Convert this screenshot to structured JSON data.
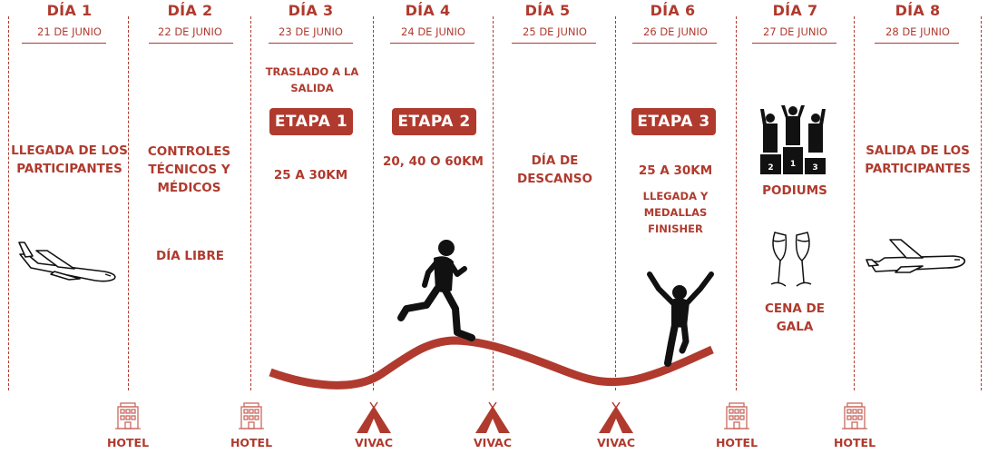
{
  "colors": {
    "accent": "#b03a2e",
    "figure": "#111111"
  },
  "days": [
    {
      "title": "DÍA 1",
      "date": "21 DE JUNIO"
    },
    {
      "title": "DÍA 2",
      "date": "22 DE JUNIO"
    },
    {
      "title": "DÍA 3",
      "date": "23 DE JUNIO"
    },
    {
      "title": "DÍA 4",
      "date": "24 DE JUNIO"
    },
    {
      "title": "DÍA 5",
      "date": "25 DE JUNIO"
    },
    {
      "title": "DÍA 6",
      "date": "26 DE JUNIO"
    },
    {
      "title": "DÍA 7",
      "date": "27 DE JUNIO"
    },
    {
      "title": "DÍA 8",
      "date": "28 DE JUNIO"
    }
  ],
  "content": {
    "day1_text": "LLEGADA DE LOS PARTICIPANTES",
    "day2_text": "CONTROLES TÉCNICOS Y MÉDICOS",
    "day2_sub": "DÍA LIBRE",
    "day3_top": "TRASLADO A LA SALIDA",
    "day3_etapa": "ETAPA 1",
    "day3_dist": "25 A 30KM",
    "day4_etapa": "ETAPA 2",
    "day4_dist": "20, 40 O 60KM",
    "day5_text": "DÍA DE DESCANSO",
    "day6_etapa": "ETAPA 3",
    "day6_dist": "25 A 30KM",
    "day6_sub": "LLEGADA Y MEDALLAS FINISHER",
    "day7_text1": "PODIUMS",
    "day7_text2": "CENA DE GALA",
    "day8_text": "SALIDA DE LOS PARTICIPANTES"
  },
  "podium_numbers": [
    "2",
    "1",
    "3"
  ],
  "footer": [
    {
      "label": "HOTEL",
      "icon": "hotel-icon"
    },
    {
      "label": "HOTEL",
      "icon": "hotel-icon"
    },
    {
      "label": "VIVAC",
      "icon": "tent-icon"
    },
    {
      "label": "VIVAC",
      "icon": "tent-icon"
    },
    {
      "label": "VIVAC",
      "icon": "tent-icon"
    },
    {
      "label": "HOTEL",
      "icon": "hotel-icon"
    },
    {
      "label": "HOTEL",
      "icon": "hotel-icon"
    }
  ]
}
